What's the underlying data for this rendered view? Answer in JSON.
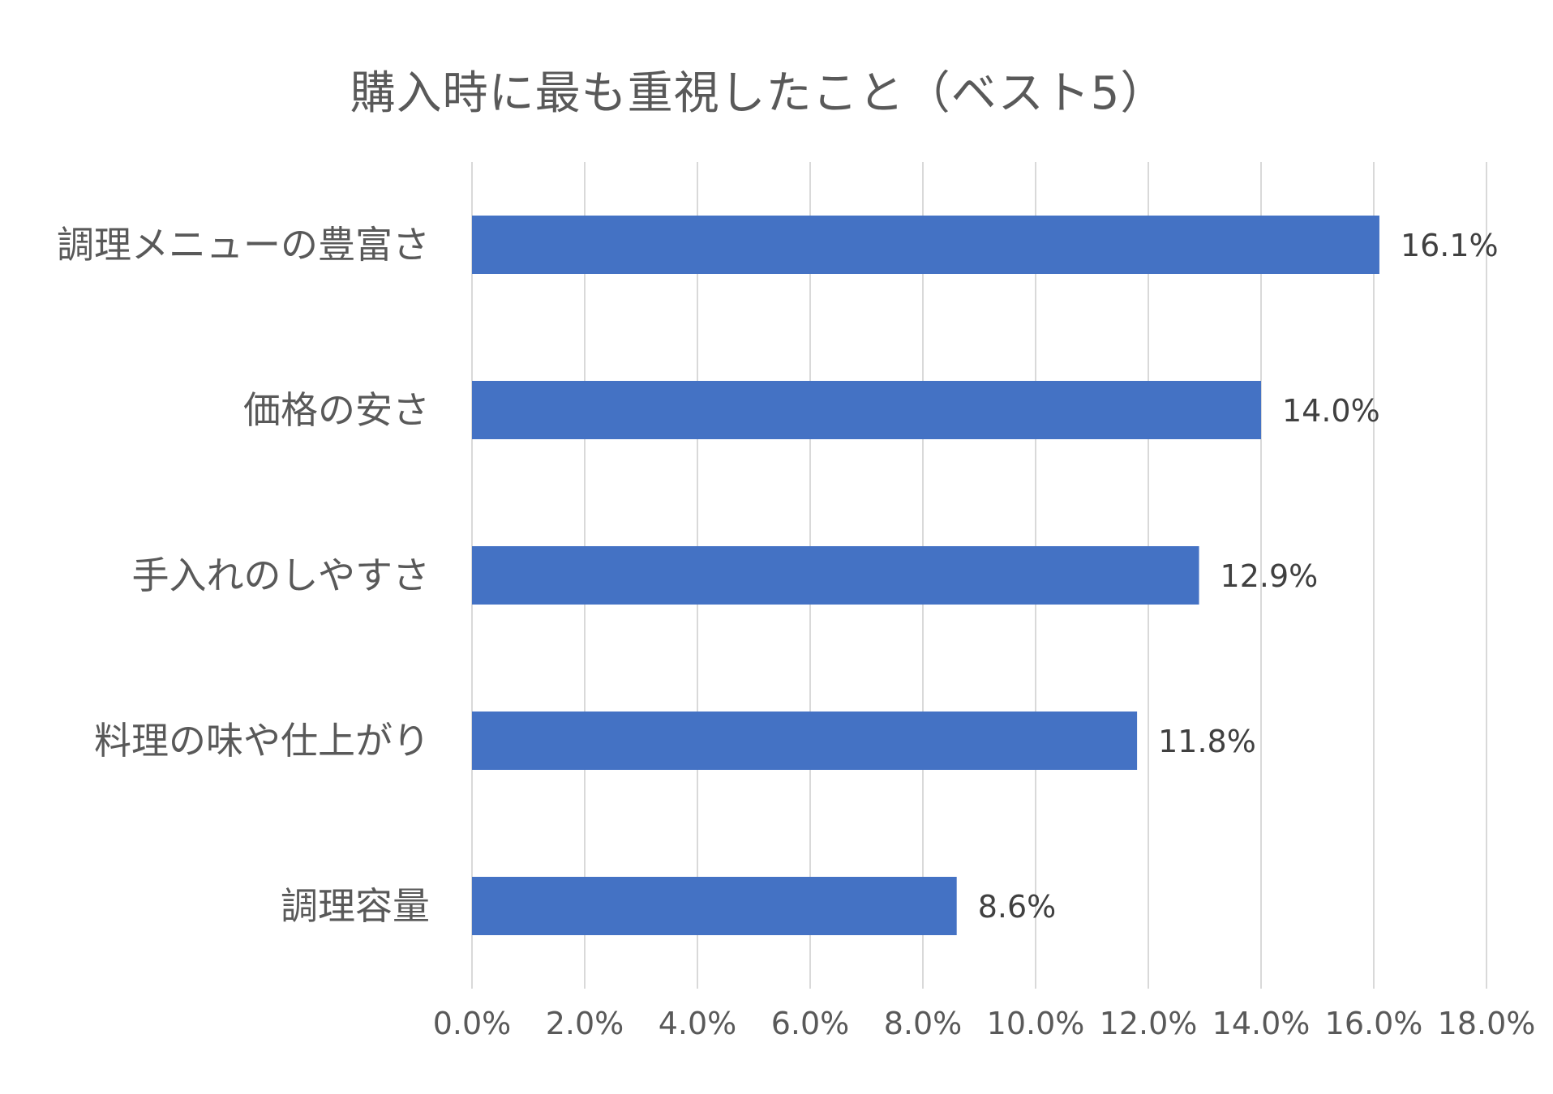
{
  "chart_data": {
    "type": "bar",
    "orientation": "horizontal",
    "title": "購入時に最も重視したこと（ベスト5）",
    "categories": [
      "調理メニューの豊富さ",
      "価格の安さ",
      "手入れのしやすさ",
      "料理の味や仕上がり",
      "調理容量"
    ],
    "values": [
      16.1,
      14.0,
      12.9,
      11.8,
      8.6
    ],
    "value_labels": [
      "16.1%",
      "14.0%",
      "12.9%",
      "11.8%",
      "8.6%"
    ],
    "xlim": [
      0,
      18
    ],
    "x_ticks": [
      0,
      2,
      4,
      6,
      8,
      10,
      12,
      14,
      16,
      18
    ],
    "x_tick_labels": [
      "0.0%",
      "2.0%",
      "4.0%",
      "6.0%",
      "8.0%",
      "10.0%",
      "12.0%",
      "14.0%",
      "16.0%",
      "18.0%"
    ],
    "grid": true,
    "legend": "none",
    "colors": {
      "bar": "#4472C4",
      "grid": "#D9D9D9",
      "text": "#595959",
      "label": "#404040"
    }
  }
}
